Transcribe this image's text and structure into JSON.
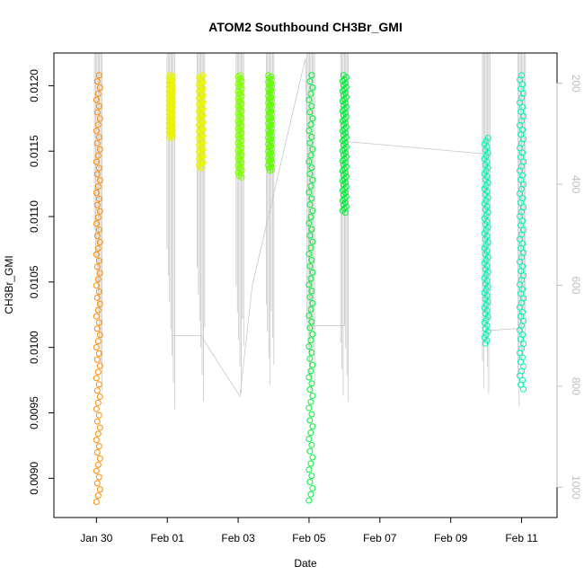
{
  "chart_data": {
    "type": "scatter",
    "title": "ATOM2 Southbound CH3Br_GMI",
    "xlabel": "Date",
    "ylabel": "CH3Br_GMI",
    "x_ticks": [
      "Jan 30",
      "Feb 01",
      "Feb 03",
      "Feb 05",
      "Feb 07",
      "Feb 09",
      "Feb 11"
    ],
    "x_tick_days": [
      30,
      32,
      34,
      36,
      38,
      40,
      42
    ],
    "xlim_days": [
      28.8,
      43.0
    ],
    "y_ticks": [
      "0.0090",
      "0.0095",
      "0.0100",
      "0.0105",
      "0.0110",
      "0.0115",
      "0.0120"
    ],
    "y_tick_values": [
      0.009,
      0.0095,
      0.01,
      0.0105,
      0.011,
      0.0115,
      0.012
    ],
    "ylim": [
      0.0087,
      0.01225
    ],
    "y2_ticks": [
      "200",
      "400",
      "600",
      "800",
      "1000"
    ],
    "y2_tick_values": [
      200,
      400,
      600,
      800,
      1000
    ],
    "y2lim": [
      1060,
      140
    ],
    "y2_color": "#bebebe",
    "grid": false,
    "point_style": "open-circle",
    "series": [
      {
        "color": "#ff8c00",
        "day": 30.05,
        "ymin": 0.00882,
        "ymax": 0.01208
      },
      {
        "color": "#e8f400",
        "day": 32.1,
        "ymin": 0.0116,
        "ymax": 0.01208
      },
      {
        "color": "#e8f400",
        "day": 32.95,
        "ymin": 0.01137,
        "ymax": 0.01208
      },
      {
        "color": "#80ff00",
        "day": 34.05,
        "ymin": 0.0113,
        "ymax": 0.01208
      },
      {
        "color": "#5cff00",
        "day": 34.9,
        "ymin": 0.01135,
        "ymax": 0.01208
      },
      {
        "color": "#00ee3a",
        "day": 36.05,
        "ymin": 0.00883,
        "ymax": 0.01208
      },
      {
        "color": "#00ee3a",
        "day": 37.0,
        "ymin": 0.01103,
        "ymax": 0.01208
      },
      {
        "color": "#00f5b8",
        "day": 41.0,
        "ymin": 0.01003,
        "ymax": 0.0116
      },
      {
        "color": "#00f5b8",
        "day": 42.0,
        "ymin": 0.00968,
        "ymax": 0.01208
      }
    ],
    "altitude_trace_color": "#c8c8c8"
  }
}
